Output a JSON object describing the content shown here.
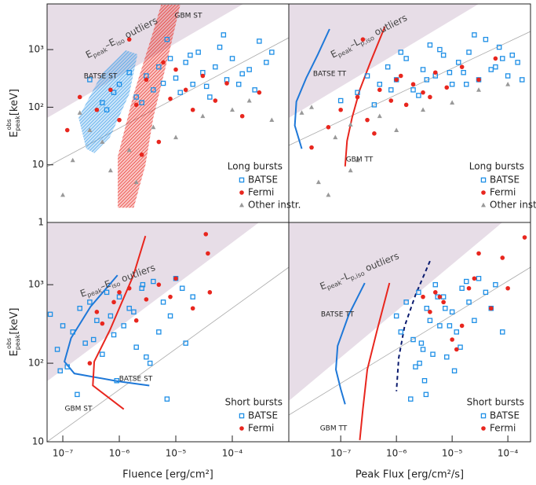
{
  "chart_data": [
    {
      "type": "scatter",
      "xlog": true,
      "ylog": true,
      "xlim": [
        5.27e-08,
        0.001
      ],
      "ylim": [
        1,
        6200
      ],
      "yticks": [
        1,
        10,
        {
          "value": 100,
          "label": "10²"
        },
        {
          "value": 1000,
          "label": "10³"
        }
      ],
      "ylabel": {
        "symbol": "E",
        "sub": "peak",
        "sup": "obs",
        "unit": " [keV]"
      },
      "outlier_label": [
        "E",
        "peak",
        "–E",
        "iso",
        " outliers"
      ],
      "legend_title": "Long bursts",
      "bands": [
        {
          "name": "BATSE ST",
          "color": "#3a9be8",
          "x": [
            2.6e-07,
            1.9e-07,
            4.9e-07,
            1.3e-06,
            2.1e-06,
            1.5e-06,
            6.8e-07,
            3.6e-07
          ],
          "y": [
            19,
            66,
            380,
            970,
            830,
            170,
            30,
            16
          ]
        },
        {
          "name": "GBM ST",
          "color": "#e8261e",
          "x": [
            9.4e-07,
            9.4e-07,
            1.8e-06,
            4e-06,
            5.5e-06,
            1.2e-05,
            7.5e-06,
            4e-06,
            2.9e-06,
            1.8e-06
          ],
          "y": [
            1.8,
            14,
            170,
            2100,
            6000,
            6000,
            830,
            66,
            10,
            1.8
          ]
        }
      ],
      "series": [
        {
          "name": "BATSE",
          "color": "#1e8fe6",
          "marker": "square",
          "x": [
            3e-07,
            5e-07,
            8e-07,
            1e-06,
            1.5e-06,
            2e-06,
            3e-06,
            4e-06,
            5e-06,
            6e-06,
            8e-06,
            1e-05,
            1.2e-05,
            1.5e-05,
            2e-05,
            2.5e-05,
            3e-05,
            4e-05,
            5e-05,
            6e-05,
            8e-05,
            0.0001,
            0.00013,
            0.0002,
            0.0003,
            0.0004,
            6e-07,
            2.5e-06,
            7e-06,
            1.8e-05,
            3.5e-05,
            7e-05,
            0.00015,
            0.00025,
            0.0005
          ],
          "values": [
            300,
            120,
            180,
            250,
            400,
            150,
            350,
            200,
            500,
            260,
            700,
            320,
            180,
            600,
            250,
            900,
            400,
            150,
            500,
            1100,
            300,
            700,
            250,
            450,
            1400,
            600,
            90,
            120,
            1500,
            800,
            230,
            1800,
            380,
            200,
            900
          ]
        },
        {
          "name": "Fermi",
          "color": "#e8261e",
          "marker": "circle",
          "x": [
            1.2e-07,
            2e-07,
            4e-07,
            7e-07,
            1e-06,
            1.5e-06,
            2e-06,
            3e-06,
            5e-06,
            8e-06,
            1e-05,
            1.5e-05,
            2e-05,
            3e-05,
            5e-05,
            8e-05,
            0.00015,
            0.0003,
            2.5e-06,
            6e-06
          ],
          "values": [
            40,
            150,
            90,
            200,
            60,
            1500,
            110,
            300,
            25,
            140,
            450,
            200,
            90,
            350,
            130,
            260,
            70,
            180,
            15,
            600
          ]
        },
        {
          "name": "Other instr.",
          "color": "#999999",
          "marker": "triangle",
          "x": [
            1e-07,
            1.5e-07,
            3e-07,
            5e-07,
            7e-07,
            1.5e-06,
            2e-06,
            4e-06,
            1e-05,
            3e-05,
            0.0001,
            0.0002,
            0.0005,
            2e-07
          ],
          "values": [
            3,
            12,
            40,
            25,
            8,
            18,
            5,
            45,
            30,
            70,
            90,
            130,
            60,
            80
          ]
        }
      ]
    },
    {
      "type": "scatter",
      "xlog": true,
      "ylog": true,
      "xlim": [
        1.17e-08,
        0.000255
      ],
      "ylim": [
        1,
        6200
      ],
      "outlier_label": [
        "E",
        "peak",
        "–L",
        "p,iso",
        " outliers"
      ],
      "legend_title": "Long bursts",
      "curves": [
        {
          "name": "BATSE TT",
          "color": "#1e78d8",
          "x": [
            2e-08,
            1.5e-08,
            1.6e-08,
            2.4e-08,
            3.9e-08,
            6.3e-08
          ],
          "y": [
            19,
            48,
            125,
            320,
            830,
            2270
          ]
        },
        {
          "name": "GBM TT",
          "color": "#e8261e",
          "x": [
            1.2e-07,
            1.3e-07,
            1.6e-07,
            2.2e-07,
            3.4e-07,
            6.2e-07
          ],
          "y": [
            9.4,
            26,
            66,
            200,
            600,
            2500
          ]
        }
      ],
      "series": [
        {
          "name": "BATSE",
          "color": "#1e8fe6",
          "marker": "square",
          "x": [
            1e-07,
            2e-07,
            3e-07,
            5e-07,
            7e-07,
            1e-06,
            1.5e-06,
            2e-06,
            3e-06,
            4e-06,
            5e-06,
            7e-06,
            1e-05,
            1.3e-05,
            1.6e-05,
            2e-05,
            3e-05,
            4e-05,
            6e-05,
            8e-05,
            0.0001,
            0.00015,
            4e-07,
            8e-07,
            1.2e-06,
            2.5e-06,
            3.5e-06,
            6e-06,
            9e-06,
            1.8e-05,
            2.5e-05,
            5e-05,
            0.00012,
            0.00018,
            7e-05
          ],
          "values": [
            130,
            180,
            350,
            250,
            500,
            300,
            700,
            200,
            450,
            1200,
            350,
            800,
            250,
            600,
            400,
            900,
            300,
            1500,
            500,
            700,
            350,
            600,
            110,
            200,
            900,
            160,
            300,
            1000,
            400,
            250,
            1800,
            450,
            800,
            300,
            1100
          ]
        },
        {
          "name": "Fermi",
          "color": "#e8261e",
          "marker": "circle",
          "x": [
            3e-08,
            6e-08,
            1e-07,
            2e-07,
            3e-07,
            5e-07,
            8e-07,
            1e-06,
            1.5e-06,
            2e-06,
            3e-06,
            5e-06,
            8e-06,
            1.5e-05,
            3e-05,
            6e-05,
            2.5e-07,
            4e-07,
            1.2e-06,
            4e-06
          ],
          "values": [
            20,
            45,
            90,
            150,
            60,
            200,
            130,
            300,
            110,
            250,
            180,
            400,
            220,
            500,
            300,
            700,
            1500,
            35,
            350,
            150
          ]
        },
        {
          "name": "Other instr.",
          "color": "#999999",
          "marker": "triangle",
          "x": [
            2e-08,
            3e-08,
            4e-08,
            6e-08,
            8e-08,
            1.5e-07,
            2e-07,
            5e-07,
            1e-06,
            3e-06,
            1e-05,
            3e-05,
            0.0001,
            1.5e-07
          ],
          "values": [
            80,
            100,
            5,
            3,
            30,
            50,
            12,
            70,
            40,
            90,
            120,
            200,
            250,
            8
          ]
        }
      ]
    },
    {
      "type": "scatter",
      "xlog": true,
      "ylog": true,
      "xlim": [
        5.27e-08,
        0.001
      ],
      "ylim": [
        10,
        6200
      ],
      "xticks": [
        {
          "value": 1e-07,
          "label": "10⁻⁷"
        },
        {
          "value": 1e-06,
          "label": "10⁻⁶"
        },
        {
          "value": 1e-05,
          "label": "10⁻⁵"
        },
        {
          "value": 0.0001,
          "label": "10⁻⁴"
        }
      ],
      "yticks": [
        10,
        {
          "value": 100,
          "label": "10²"
        },
        {
          "value": 1000,
          "label": "10³"
        }
      ],
      "xlabel": "Fluence [erg/cm²]",
      "ylabel": {
        "symbol": "E",
        "sub": "peak",
        "sup": "obs",
        "unit": " [keV]"
      },
      "outlier_label": [
        "E",
        "peak",
        "–E",
        "iso",
        " outliers"
      ],
      "legend_title": "Short bursts",
      "curves": [
        {
          "name": "BATSE ST",
          "color": "#1e78d8",
          "x": [
            9.3e-07,
            3.1e-07,
            1.4e-07,
            1.07e-07,
            1.6e-07,
            9.3e-07,
            3.4e-06
          ],
          "y": [
            1320,
            525,
            209,
            105,
            74,
            59,
            52
          ]
        },
        {
          "name": "GBM ST",
          "color": "#e8261e",
          "x": [
            2.9e-06,
            1.78e-06,
            6.8e-07,
            3.6e-07,
            3.4e-07,
            1.2e-06
          ],
          "y": [
            4170,
            1320,
            263,
            105,
            52,
            26
          ]
        }
      ],
      "series": [
        {
          "name": "BATSE",
          "color": "#1e8fe6",
          "marker": "square",
          "x": [
            6e-08,
            8e-08,
            1e-07,
            1.2e-07,
            1.5e-07,
            2e-07,
            2.5e-07,
            3e-07,
            4e-07,
            5e-07,
            6e-07,
            7e-07,
            8e-07,
            1e-06,
            1.2e-06,
            1.5e-06,
            2e-06,
            2.5e-06,
            3e-06,
            4e-06,
            5e-06,
            6e-06,
            8e-06,
            1e-05,
            1.5e-05,
            2e-05,
            9e-08,
            1.8e-07,
            3.5e-07,
            9e-07,
            1.8e-06,
            3.5e-06,
            7e-06,
            2.6e-06,
            1.3e-05
          ],
          "values": [
            420,
            150,
            300,
            90,
            250,
            500,
            180,
            600,
            350,
            130,
            800,
            400,
            230,
            700,
            300,
            500,
            160,
            900,
            120,
            1100,
            250,
            600,
            400,
            1200,
            180,
            700,
            80,
            40,
            200,
            60,
            450,
            100,
            35,
            1000,
            900
          ]
        },
        {
          "name": "Fermi",
          "color": "#e8261e",
          "marker": "circle",
          "x": [
            3e-07,
            4e-07,
            5e-07,
            8e-07,
            1e-06,
            1.5e-06,
            2e-06,
            3e-06,
            5e-06,
            8e-06,
            1e-05,
            2e-05,
            3.4e-05,
            3.7e-05,
            4e-05
          ],
          "values": [
            100,
            450,
            320,
            600,
            800,
            900,
            350,
            650,
            1000,
            700,
            1200,
            500,
            4400,
            2500,
            800
          ]
        }
      ]
    },
    {
      "type": "scatter",
      "xlog": true,
      "ylog": true,
      "xlim": [
        1.17e-08,
        0.000255
      ],
      "ylim": [
        10,
        6200
      ],
      "xticks": [
        {
          "value": 1e-07,
          "label": "10⁻⁷"
        },
        {
          "value": 1e-06,
          "label": "10⁻⁶"
        },
        {
          "value": 1e-05,
          "label": "10⁻⁵"
        },
        {
          "value": 0.0001,
          "label": "10⁻⁴"
        }
      ],
      "xlabel": "Peak Flux [erg/cm²/s]",
      "outlier_label": [
        "E",
        "peak",
        "–L",
        "p,iso",
        " outliers"
      ],
      "legend_title": "Short bursts",
      "curves": [
        {
          "name": "BATSE TT",
          "color": "#1e78d8",
          "x": [
            2.7e-07,
            1.4e-07,
            8.8e-08,
            8.2e-08,
            1e-07,
            1.2e-07
          ],
          "y": [
            1050,
            417,
            166,
            83,
            47,
            30
          ]
        },
        {
          "name": "GBM TT",
          "color": "#e8261e",
          "x": [
            7.5e-07,
            4.5e-07,
            3e-07,
            2.5e-07,
            2.2e-07
          ],
          "y": [
            1050,
            263,
            83,
            26,
            10.5
          ]
        },
        {
          "color": "#0a1a6e",
          "dashed": true,
          "x": [
            4e-06,
            2.2e-06,
            1.4e-06,
            1.1e-06,
            1e-06
          ],
          "y": [
            2000,
            740,
            295,
            117,
            44
          ]
        }
      ],
      "series": [
        {
          "name": "BATSE",
          "color": "#1e8fe6",
          "marker": "square",
          "x": [
            1e-06,
            1.2e-06,
            1.5e-06,
            2e-06,
            2.5e-06,
            3e-06,
            3.5e-06,
            4e-06,
            5e-06,
            6e-06,
            7e-06,
            8e-06,
            1e-05,
            1.2e-05,
            1.5e-05,
            2e-05,
            2.5e-05,
            3e-05,
            4e-05,
            5e-05,
            6e-05,
            8e-05,
            1.8e-06,
            2.2e-06,
            2.8e-06,
            3.2e-06,
            4.5e-06,
            5.5e-06,
            9e-06,
            1.1e-05,
            1.4e-05,
            1.8e-05,
            3.4e-06,
            2.6e-06,
            7.5e-06
          ],
          "values": [
            400,
            250,
            600,
            200,
            800,
            150,
            500,
            350,
            1000,
            300,
            700,
            120,
            450,
            250,
            900,
            600,
            350,
            1200,
            800,
            500,
            1000,
            250,
            35,
            90,
            180,
            60,
            130,
            700,
            300,
            80,
            160,
            1100,
            40,
            100,
            500
          ]
        },
        {
          "name": "Fermi",
          "color": "#e8261e",
          "marker": "circle",
          "x": [
            3e-06,
            5e-06,
            7e-06,
            1e-05,
            1.5e-05,
            2e-05,
            3e-05,
            5e-05,
            8e-05,
            0.0001,
            0.0002,
            1.2e-05,
            4e-06,
            6e-06,
            2.5e-05
          ],
          "values": [
            700,
            800,
            600,
            200,
            300,
            900,
            2500,
            500,
            2200,
            900,
            4000,
            150,
            450,
            700,
            1200
          ]
        }
      ]
    }
  ]
}
